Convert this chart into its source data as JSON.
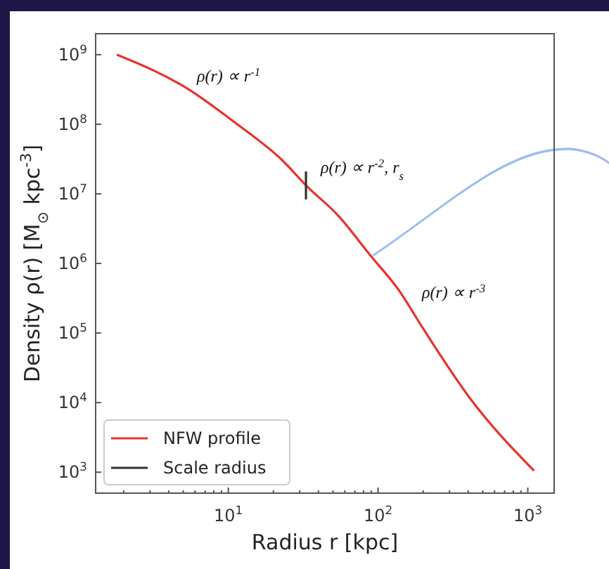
{
  "chart_data": {
    "type": "line",
    "xlabel": "Radius r [kpc]",
    "ylabel": "Density ρ(r) [M$_{⊙}$ kpc$^{-3}$]",
    "log": "xy",
    "legend": "bottom left",
    "grid": false,
    "xlim": [
      1.3,
      1500
    ],
    "ylim": [
      500,
      2000000000
    ],
    "xticks": [
      {
        "value": 2,
        "label": null
      },
      {
        "value": 3,
        "label": null
      },
      {
        "value": 4,
        "label": null
      },
      {
        "value": 5,
        "label": null
      },
      {
        "value": 6,
        "label": null
      },
      {
        "value": 7,
        "label": null
      },
      {
        "value": 8,
        "label": null
      },
      {
        "value": 9,
        "label": null
      },
      {
        "value": 10,
        "label": "10$^{1}$"
      },
      {
        "value": 20,
        "label": null
      },
      {
        "value": 30,
        "label": null
      },
      {
        "value": 40,
        "label": null
      },
      {
        "value": 50,
        "label": null
      },
      {
        "value": 60,
        "label": null
      },
      {
        "value": 70,
        "label": null
      },
      {
        "value": 80,
        "label": null
      },
      {
        "value": 90,
        "label": null
      },
      {
        "value": 100,
        "label": "10$^{2}$"
      },
      {
        "value": 200,
        "label": null
      },
      {
        "value": 300,
        "label": null
      },
      {
        "value": 400,
        "label": null
      },
      {
        "value": 500,
        "label": null
      },
      {
        "value": 600,
        "label": null
      },
      {
        "value": 700,
        "label": null
      },
      {
        "value": 800,
        "label": null
      },
      {
        "value": 900,
        "label": null
      },
      {
        "value": 1000,
        "label": "10$^{3}$"
      }
    ],
    "yticks": [
      {
        "value": 1000,
        "label": "10$^{3}$"
      },
      {
        "value": 10000,
        "label": "10$^{4}$"
      },
      {
        "value": 100000,
        "label": "10$^{5}$"
      },
      {
        "value": 1000000,
        "label": "10$^{6}$"
      },
      {
        "value": 10000000,
        "label": "10$^{7}$"
      },
      {
        "value": 100000000,
        "label": "10$^{8}$"
      },
      {
        "value": 1000000000,
        "label": "10$^{9}$"
      }
    ],
    "series": [
      {
        "name": "NFW profile",
        "color": "#e8322c",
        "x": [
          1.8,
          5.4,
          11,
          22.7,
          33.3,
          54,
          89,
          138,
          198,
          408,
          1100
        ],
        "values": [
          1000000000,
          320000000,
          107000000,
          31000000,
          13000000,
          4900000,
          1300000,
          410000,
          120000,
          11800,
          1050
        ]
      },
      {
        "name": "Scale radius",
        "color": "#333333",
        "x": [
          33,
          33
        ],
        "values": [
          21000000,
          8300000
        ]
      }
    ],
    "annotations": [
      "ρ(r) ∝ r$^{-1}$",
      "ρ(r) ∝ r$^{-2}$, r$_{s}$",
      "ρ(r) ∝ r$^{-3}$"
    ]
  }
}
